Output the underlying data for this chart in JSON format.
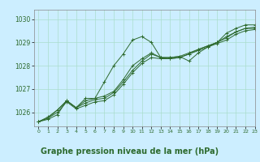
{
  "background_color": "#cceeff",
  "plot_bg_color": "#cceeff",
  "line_color": "#2d6a2d",
  "grid_color": "#aaddcc",
  "xlabel": "Graphe pression niveau de la mer (hPa)",
  "xlabel_fontsize": 7,
  "ylim": [
    1025.4,
    1030.4
  ],
  "xlim": [
    -0.5,
    23
  ],
  "yticks": [
    1026,
    1027,
    1028,
    1029,
    1030
  ],
  "xticks": [
    0,
    1,
    2,
    3,
    4,
    5,
    6,
    7,
    8,
    9,
    10,
    11,
    12,
    13,
    14,
    15,
    16,
    17,
    18,
    19,
    20,
    21,
    22,
    23
  ],
  "series": [
    [
      1025.6,
      1025.7,
      1025.9,
      1026.5,
      1026.2,
      1026.6,
      1026.6,
      1027.3,
      1028.0,
      1028.5,
      1029.1,
      1029.25,
      1029.0,
      1028.35,
      1028.35,
      1028.4,
      1028.2,
      1028.55,
      1028.8,
      1029.0,
      1029.4,
      1029.6,
      1029.75,
      1029.75
    ],
    [
      1025.6,
      1025.75,
      1026.1,
      1026.5,
      1026.2,
      1026.4,
      1026.55,
      1026.6,
      1026.85,
      1027.3,
      1027.8,
      1028.2,
      1028.5,
      1028.35,
      1028.35,
      1028.4,
      1028.55,
      1028.7,
      1028.85,
      1029.0,
      1029.2,
      1029.45,
      1029.6,
      1029.65
    ],
    [
      1025.6,
      1025.75,
      1026.0,
      1026.45,
      1026.15,
      1026.3,
      1026.45,
      1026.5,
      1026.75,
      1027.2,
      1027.7,
      1028.1,
      1028.35,
      1028.3,
      1028.3,
      1028.35,
      1028.5,
      1028.65,
      1028.8,
      1028.95,
      1029.1,
      1029.35,
      1029.5,
      1029.55
    ],
    [
      1025.6,
      1025.8,
      1026.1,
      1026.5,
      1026.2,
      1026.5,
      1026.6,
      1026.7,
      1026.9,
      1027.4,
      1028.0,
      1028.3,
      1028.55,
      1028.35,
      1028.3,
      1028.35,
      1028.5,
      1028.7,
      1028.85,
      1029.0,
      1029.25,
      1029.45,
      1029.6,
      1029.6
    ]
  ]
}
